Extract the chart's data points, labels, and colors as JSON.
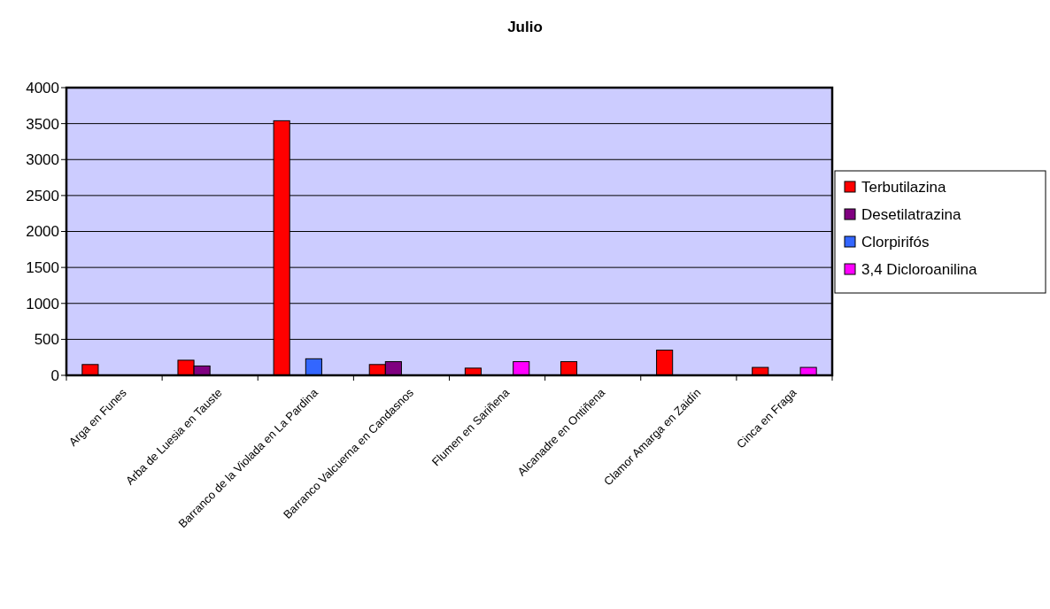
{
  "chart_data": {
    "type": "bar",
    "title": "Julio",
    "categories": [
      "Arga en Funes",
      "Arba de Luesia en Tauste",
      "Barranco de la Violada en La Pardina",
      "Barranco Valcuerna en Candasnos",
      "Flumen en Sariñena",
      "Alcanadre en Ontiñena",
      "Clamor Amarga en Zaidín",
      "Cinca en Fraga"
    ],
    "series": [
      {
        "name": "Terbutilazina",
        "color": "#ff0000",
        "values": [
          150,
          210,
          3540,
          150,
          100,
          190,
          350,
          110
        ]
      },
      {
        "name": "Desetilatrazina",
        "color": "#800080",
        "values": [
          null,
          130,
          null,
          190,
          null,
          null,
          null,
          null
        ]
      },
      {
        "name": "Clorpirifós",
        "color": "#3366ff",
        "values": [
          null,
          null,
          230,
          null,
          null,
          null,
          null,
          null
        ]
      },
      {
        "name": "3,4 Dicloroanilina",
        "color": "#ff00ff",
        "values": [
          null,
          null,
          null,
          null,
          190,
          null,
          null,
          110
        ]
      }
    ],
    "ylim": [
      0,
      4000
    ],
    "yticks": [
      0,
      500,
      1000,
      1500,
      2000,
      2500,
      3000,
      3500,
      4000
    ],
    "grid": "y",
    "legend": "right"
  }
}
